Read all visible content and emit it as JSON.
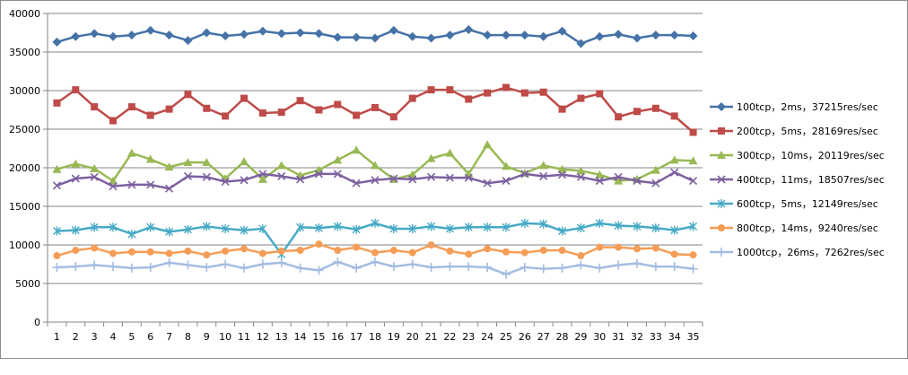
{
  "chart_data": {
    "type": "line",
    "x": [
      1,
      2,
      3,
      4,
      5,
      6,
      7,
      8,
      9,
      10,
      11,
      12,
      13,
      14,
      15,
      16,
      17,
      18,
      19,
      20,
      21,
      22,
      23,
      24,
      25,
      26,
      27,
      28,
      29,
      30,
      31,
      32,
      33,
      34,
      35
    ],
    "ylim": [
      0,
      40000
    ],
    "yticks": [
      0,
      5000,
      10000,
      15000,
      20000,
      25000,
      30000,
      35000,
      40000
    ],
    "ytick_labels": [
      "0",
      "5000",
      "10000",
      "15000",
      "20000",
      "25000",
      "30000",
      "35000",
      "40000"
    ],
    "xtick_labels": [
      "1",
      "2",
      "3",
      "4",
      "5",
      "6",
      "7",
      "8",
      "9",
      "10",
      "11",
      "12",
      "13",
      "14",
      "15",
      "16",
      "17",
      "18",
      "19",
      "20",
      "21",
      "22",
      "23",
      "24",
      "25",
      "26",
      "27",
      "28",
      "29",
      "30",
      "31",
      "32",
      "33",
      "34",
      "35"
    ],
    "grid": "horizontal",
    "legend_position": "right",
    "series": [
      {
        "name": "100tcp，2ms，37215res/sec",
        "color": "#4572A7",
        "marker": "diamond",
        "values": [
          36300,
          37000,
          37400,
          37000,
          37200,
          37800,
          37200,
          36500,
          37500,
          37100,
          37300,
          37700,
          37400,
          37500,
          37400,
          36900,
          36900,
          36800,
          37800,
          37000,
          36800,
          37200,
          37900,
          37200,
          37200,
          37200,
          37000,
          37700,
          36100,
          37000,
          37300,
          36800,
          37200,
          37200,
          37100
        ]
      },
      {
        "name": "200tcp，5ms，28169res/sec",
        "color": "#BE4B48",
        "marker": "square",
        "values": [
          28400,
          30100,
          27900,
          26100,
          27900,
          26800,
          27600,
          29500,
          27700,
          26700,
          29000,
          27100,
          27200,
          28700,
          27500,
          28200,
          26800,
          27800,
          26600,
          29000,
          30100,
          30100,
          28900,
          29700,
          30400,
          29700,
          29800,
          27600,
          29000,
          29600,
          26600,
          27300,
          27700,
          26700,
          24600
        ]
      },
      {
        "name": "300tcp，10ms，20119res/sec",
        "color": "#98B954",
        "marker": "triangle",
        "values": [
          19800,
          20500,
          19900,
          18300,
          21900,
          21100,
          20100,
          20700,
          20700,
          18600,
          20800,
          18500,
          20300,
          19000,
          19700,
          21000,
          22300,
          20300,
          18500,
          19100,
          21200,
          21900,
          19200,
          23000,
          20200,
          19300,
          20300,
          19800,
          19600,
          19100,
          18300,
          18500,
          19700,
          21000,
          20900
        ]
      },
      {
        "name": "400tcp，11ms，18507res/sec",
        "color": "#7D60A0",
        "marker": "x",
        "values": [
          17700,
          18600,
          18800,
          17600,
          17800,
          17800,
          17300,
          18900,
          18800,
          18200,
          18400,
          19200,
          18900,
          18500,
          19200,
          19200,
          18000,
          18400,
          18600,
          18500,
          18800,
          18700,
          18700,
          18000,
          18300,
          19200,
          18900,
          19100,
          18800,
          18300,
          18800,
          18300,
          18000,
          19400,
          18300
        ]
      },
      {
        "name": "600tcp，5ms，12149res/sec",
        "color": "#46AAC5",
        "marker": "asterisk",
        "values": [
          11800,
          11900,
          12300,
          12300,
          11400,
          12300,
          11700,
          12000,
          12400,
          12100,
          11900,
          12100,
          8800,
          12300,
          12200,
          12400,
          12000,
          12800,
          12100,
          12100,
          12400,
          12100,
          12300,
          12300,
          12300,
          12800,
          12700,
          11800,
          12200,
          12800,
          12500,
          12400,
          12200,
          11900,
          12400
        ]
      },
      {
        "name": "800tcp，14ms，9240res/sec",
        "color": "#F59D56",
        "marker": "circle",
        "values": [
          8600,
          9300,
          9600,
          8900,
          9100,
          9100,
          8900,
          9200,
          8700,
          9200,
          9500,
          8900,
          9200,
          9300,
          10100,
          9300,
          9700,
          9000,
          9300,
          9000,
          10000,
          9200,
          8800,
          9500,
          9100,
          9000,
          9300,
          9300,
          8600,
          9700,
          9700,
          9500,
          9600,
          8800,
          8700
        ]
      },
      {
        "name": "1000tcp，26ms，7262res/sec",
        "color": "#A3BCE2",
        "marker": "plus",
        "values": [
          7100,
          7200,
          7400,
          7200,
          7000,
          7100,
          7700,
          7400,
          7100,
          7500,
          7000,
          7500,
          7700,
          7000,
          6700,
          7800,
          7000,
          7800,
          7200,
          7500,
          7100,
          7200,
          7200,
          7100,
          6200,
          7100,
          6900,
          7000,
          7400,
          7000,
          7400,
          7600,
          7200,
          7200,
          6900
        ]
      }
    ]
  }
}
